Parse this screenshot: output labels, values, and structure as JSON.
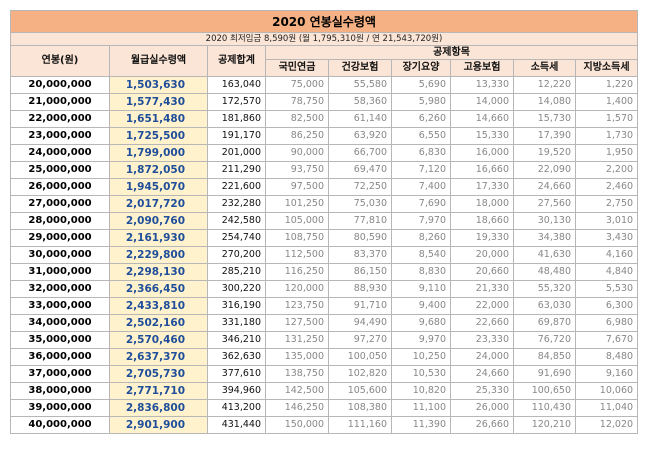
{
  "title": "2020 연봉실수령액",
  "subtitle": "2020 최저임금 8,590원 (월 1,795,310원 / 연 21,543,720원)",
  "headers": {
    "annual": "연봉(원)",
    "monthly": "월급실수령액",
    "total": "공제합계",
    "group": "공제항목",
    "items": [
      "국민연금",
      "건강보험",
      "장기요양",
      "고용보험",
      "소득세",
      "지방소득세"
    ]
  },
  "colors": {
    "title_bg": "#f5b183",
    "header_bg": "#fbe5d6",
    "monthly_bg": "#fff2cc",
    "monthly_text": "#1f4e9a"
  },
  "rows": [
    [
      "20,000,000",
      "1,503,630",
      "163,040",
      "75,000",
      "55,580",
      "5,690",
      "13,330",
      "12,220",
      "1,220"
    ],
    [
      "21,000,000",
      "1,577,430",
      "172,570",
      "78,750",
      "58,360",
      "5,980",
      "14,000",
      "14,080",
      "1,400"
    ],
    [
      "22,000,000",
      "1,651,480",
      "181,860",
      "82,500",
      "61,140",
      "6,260",
      "14,660",
      "15,730",
      "1,570"
    ],
    [
      "23,000,000",
      "1,725,500",
      "191,170",
      "86,250",
      "63,920",
      "6,550",
      "15,330",
      "17,390",
      "1,730"
    ],
    [
      "24,000,000",
      "1,799,000",
      "201,000",
      "90,000",
      "66,700",
      "6,830",
      "16,000",
      "19,520",
      "1,950"
    ],
    [
      "25,000,000",
      "1,872,050",
      "211,290",
      "93,750",
      "69,470",
      "7,120",
      "16,660",
      "22,090",
      "2,200"
    ],
    [
      "26,000,000",
      "1,945,070",
      "221,600",
      "97,500",
      "72,250",
      "7,400",
      "17,330",
      "24,660",
      "2,460"
    ],
    [
      "27,000,000",
      "2,017,720",
      "232,280",
      "101,250",
      "75,030",
      "7,690",
      "18,000",
      "27,560",
      "2,750"
    ],
    [
      "28,000,000",
      "2,090,760",
      "242,580",
      "105,000",
      "77,810",
      "7,970",
      "18,660",
      "30,130",
      "3,010"
    ],
    [
      "29,000,000",
      "2,161,930",
      "254,740",
      "108,750",
      "80,590",
      "8,260",
      "19,330",
      "34,380",
      "3,430"
    ],
    [
      "30,000,000",
      "2,229,800",
      "270,200",
      "112,500",
      "83,370",
      "8,540",
      "20,000",
      "41,630",
      "4,160"
    ],
    [
      "31,000,000",
      "2,298,130",
      "285,210",
      "116,250",
      "86,150",
      "8,830",
      "20,660",
      "48,480",
      "4,840"
    ],
    [
      "32,000,000",
      "2,366,450",
      "300,220",
      "120,000",
      "88,930",
      "9,110",
      "21,330",
      "55,320",
      "5,530"
    ],
    [
      "33,000,000",
      "2,433,810",
      "316,190",
      "123,750",
      "91,710",
      "9,400",
      "22,000",
      "63,030",
      "6,300"
    ],
    [
      "34,000,000",
      "2,502,160",
      "331,180",
      "127,500",
      "94,490",
      "9,680",
      "22,660",
      "69,870",
      "6,980"
    ],
    [
      "35,000,000",
      "2,570,460",
      "346,210",
      "131,250",
      "97,270",
      "9,970",
      "23,330",
      "76,720",
      "7,670"
    ],
    [
      "36,000,000",
      "2,637,370",
      "362,630",
      "135,000",
      "100,050",
      "10,250",
      "24,000",
      "84,850",
      "8,480"
    ],
    [
      "37,000,000",
      "2,705,730",
      "377,610",
      "138,750",
      "102,820",
      "10,530",
      "24,660",
      "91,690",
      "9,160"
    ],
    [
      "38,000,000",
      "2,771,710",
      "394,960",
      "142,500",
      "105,600",
      "10,820",
      "25,330",
      "100,650",
      "10,060"
    ],
    [
      "39,000,000",
      "2,836,800",
      "413,200",
      "146,250",
      "108,380",
      "11,100",
      "26,000",
      "110,430",
      "11,040"
    ],
    [
      "40,000,000",
      "2,901,900",
      "431,440",
      "150,000",
      "111,160",
      "11,390",
      "26,660",
      "120,210",
      "12,020"
    ]
  ]
}
